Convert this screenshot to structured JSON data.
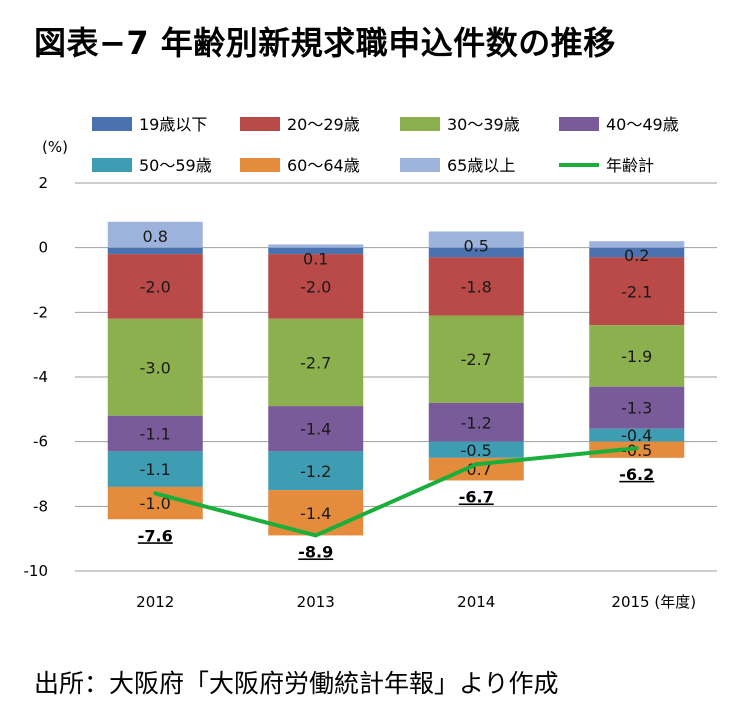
{
  "title": "図表−7 年齢別新規求職申込件数の推移",
  "source": "出所：大阪府「大阪府労働統計年報」より作成",
  "chart_data": {
    "type": "bar",
    "stacked": true,
    "categories": [
      "2012",
      "2013",
      "2014",
      "2015 (年度)"
    ],
    "ylabel": "(%)",
    "ylim": [
      -10,
      2
    ],
    "yticks": [
      2,
      0,
      -2,
      -4,
      -6,
      -8,
      -10
    ],
    "ytick_labels": [
      "2",
      "0",
      "-2",
      "-4",
      "-6",
      "-8",
      "-10"
    ],
    "grid": true,
    "legend_position": "top",
    "series": [
      {
        "name": "19歳以下",
        "type": "bar",
        "color": "#4a72b0",
        "values": [
          -0.2,
          -0.2,
          -0.3,
          -0.3
        ],
        "labels": [
          "",
          "",
          "",
          ""
        ]
      },
      {
        "name": "20～29歳",
        "type": "bar",
        "color": "#b94a48",
        "values": [
          -2.0,
          -2.0,
          -1.8,
          -2.1
        ],
        "labels": [
          "-2.0",
          "-2.0",
          "-1.8",
          "-2.1"
        ]
      },
      {
        "name": "30～39歳",
        "type": "bar",
        "color": "#8db04e",
        "values": [
          -3.0,
          -2.7,
          -2.7,
          -1.9
        ],
        "labels": [
          "-3.0",
          "-2.7",
          "-2.7",
          "-1.9"
        ]
      },
      {
        "name": "40～49歳",
        "type": "bar",
        "color": "#7a5b9a",
        "values": [
          -1.1,
          -1.4,
          -1.2,
          -1.3
        ],
        "labels": [
          "-1.1",
          "-1.4",
          "-1.2",
          "-1.3"
        ]
      },
      {
        "name": "50～59歳",
        "type": "bar",
        "color": "#3e9db3",
        "values": [
          -1.1,
          -1.2,
          -0.5,
          -0.4
        ],
        "labels": [
          "-1.1",
          "-1.2",
          "-0.5",
          "-0.4"
        ]
      },
      {
        "name": "60～64歳",
        "type": "bar",
        "color": "#e58b3c",
        "values": [
          -1.0,
          -1.4,
          -0.7,
          -0.5
        ],
        "labels": [
          "-1.0",
          "-1.4",
          "-0.7",
          "-0.5"
        ]
      },
      {
        "name": "65歳以上",
        "type": "bar",
        "color": "#9db3dc",
        "values": [
          0.8,
          0.1,
          0.5,
          0.2
        ],
        "labels": [
          "0.8",
          "0.1",
          "0.5",
          "0.2"
        ]
      },
      {
        "name": "年齢計",
        "type": "line",
        "color": "#1aae3a",
        "values": [
          -7.6,
          -8.9,
          -6.7,
          -6.2
        ],
        "labels": [
          "-7.6",
          "-8.9",
          "-6.7",
          "-6.2"
        ]
      }
    ],
    "legend_rows": [
      [
        0,
        1,
        2,
        3
      ],
      [
        4,
        5,
        6,
        7
      ]
    ]
  }
}
